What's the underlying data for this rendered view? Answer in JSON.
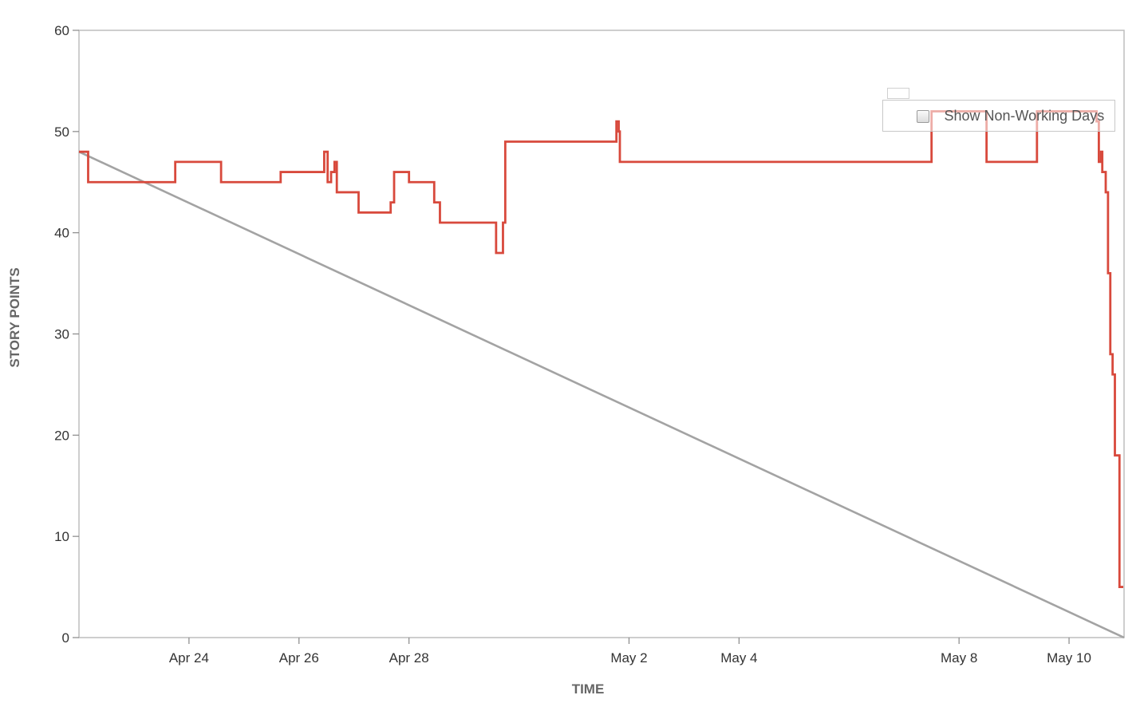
{
  "chart_data": {
    "type": "line",
    "title": "",
    "xlabel": "TIME",
    "ylabel": "STORY POINTS",
    "ylim": [
      0,
      60
    ],
    "xlim": [
      "2017-04-22",
      "2017-05-11"
    ],
    "yticks": [
      0,
      10,
      20,
      30,
      40,
      50,
      60
    ],
    "xticks": [
      {
        "label": "Apr 24",
        "date": "2017-04-24"
      },
      {
        "label": "Apr 26",
        "date": "2017-04-26"
      },
      {
        "label": "Apr 28",
        "date": "2017-04-28"
      },
      {
        "label": "May 2",
        "date": "2017-05-02"
      },
      {
        "label": "May 4",
        "date": "2017-05-04"
      },
      {
        "label": "May 8",
        "date": "2017-05-08"
      },
      {
        "label": "May 10",
        "date": "2017-05-10"
      }
    ],
    "grid": false,
    "series": [
      {
        "style": "step",
        "color": "#d8493c",
        "points": [
          [
            "2017-04-22",
            48
          ],
          [
            "2017-04-22 04:00",
            45
          ],
          [
            "2017-04-23 18:00",
            47
          ],
          [
            "2017-04-24 14:00",
            45
          ],
          [
            "2017-04-25 16:00",
            46
          ],
          [
            "2017-04-26 11:00",
            48
          ],
          [
            "2017-04-26 12:30",
            45
          ],
          [
            "2017-04-26 14:00",
            46
          ],
          [
            "2017-04-26 15:30",
            47
          ],
          [
            "2017-04-26 16:30",
            44
          ],
          [
            "2017-04-27 02:00",
            42
          ],
          [
            "2017-04-27 16:00",
            43
          ],
          [
            "2017-04-27 17:30",
            46
          ],
          [
            "2017-04-28 00:00",
            45
          ],
          [
            "2017-04-28 11:00",
            43
          ],
          [
            "2017-04-28 13:30",
            41
          ],
          [
            "2017-04-29 14:00",
            38
          ],
          [
            "2017-04-29 17:00",
            41
          ],
          [
            "2017-04-29 18:00",
            49
          ],
          [
            "2017-05-01 18:30",
            51
          ],
          [
            "2017-05-01 19:30",
            50
          ],
          [
            "2017-05-01 20:00",
            47
          ],
          [
            "2017-05-07 12:00",
            52
          ],
          [
            "2017-05-08 12:00",
            47
          ],
          [
            "2017-05-09 10:00",
            52
          ],
          [
            "2017-05-10 12:00",
            51
          ],
          [
            "2017-05-10 13:00",
            47
          ],
          [
            "2017-05-10 14:00",
            48
          ],
          [
            "2017-05-10 14:30",
            46
          ],
          [
            "2017-05-10 16:00",
            44
          ],
          [
            "2017-05-10 17:00",
            36
          ],
          [
            "2017-05-10 18:00",
            28
          ],
          [
            "2017-05-10 19:00",
            26
          ],
          [
            "2017-05-10 20:00",
            18
          ],
          [
            "2017-05-10 22:00",
            5
          ]
        ]
      },
      {
        "style": "line",
        "color": "#a3a3a3",
        "points": [
          [
            "2017-04-22",
            48
          ],
          [
            "2017-05-11",
            0
          ]
        ]
      }
    ]
  },
  "legend": {
    "checkbox_label": "Show Non-Working Days",
    "checked": false
  }
}
